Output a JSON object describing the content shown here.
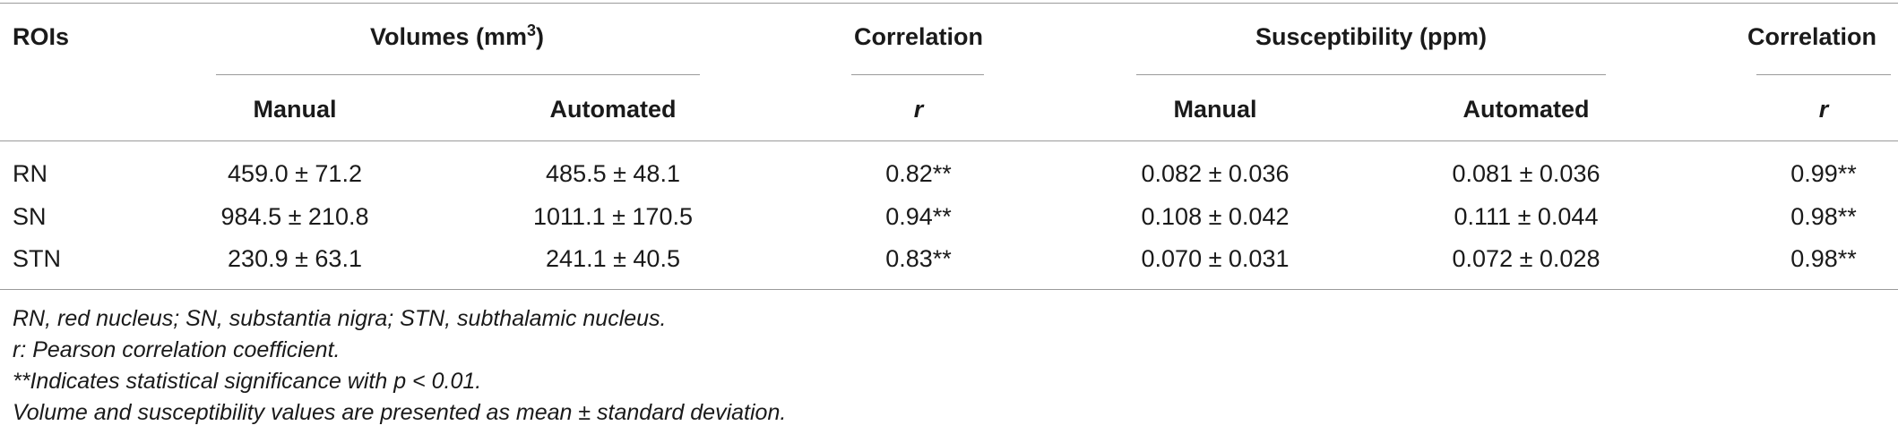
{
  "table": {
    "header1": {
      "rois": "ROIs",
      "volumes_label": "Volumes (mm",
      "volumes_sup": "3",
      "volumes_close": ")",
      "correlation1": "Correlation",
      "susceptibility": "Susceptibility (ppm)",
      "correlation2": "Correlation"
    },
    "header2": {
      "manual1": "Manual",
      "automated1": "Automated",
      "r1": "r",
      "manual2": "Manual",
      "automated2": "Automated",
      "r2": "r"
    },
    "rows": [
      {
        "roi": "RN",
        "vol_manual": "459.0 ± 71.2",
        "vol_auto": "485.5 ± 48.1",
        "vol_r": "0.82**",
        "sus_manual": "0.082 ± 0.036",
        "sus_auto": "0.081 ± 0.036",
        "sus_r": "0.99**"
      },
      {
        "roi": "SN",
        "vol_manual": "984.5 ± 210.8",
        "vol_auto": "1011.1 ± 170.5",
        "vol_r": "0.94**",
        "sus_manual": "0.108 ± 0.042",
        "sus_auto": "0.111 ± 0.044",
        "sus_r": "0.98**"
      },
      {
        "roi": "STN",
        "vol_manual": "230.9 ± 63.1",
        "vol_auto": "241.1 ± 40.5",
        "vol_r": "0.83**",
        "sus_manual": "0.070 ± 0.031",
        "sus_auto": "0.072 ± 0.028",
        "sus_r": "0.98**"
      }
    ]
  },
  "footnotes": [
    "RN, red nucleus; SN, substantia nigra; STN, subthalamic nucleus.",
    "r: Pearson correlation coefficient.",
    "**Indicates statistical significance with p < 0.01.",
    "Volume and susceptibility values are presented as mean ± standard deviation."
  ]
}
